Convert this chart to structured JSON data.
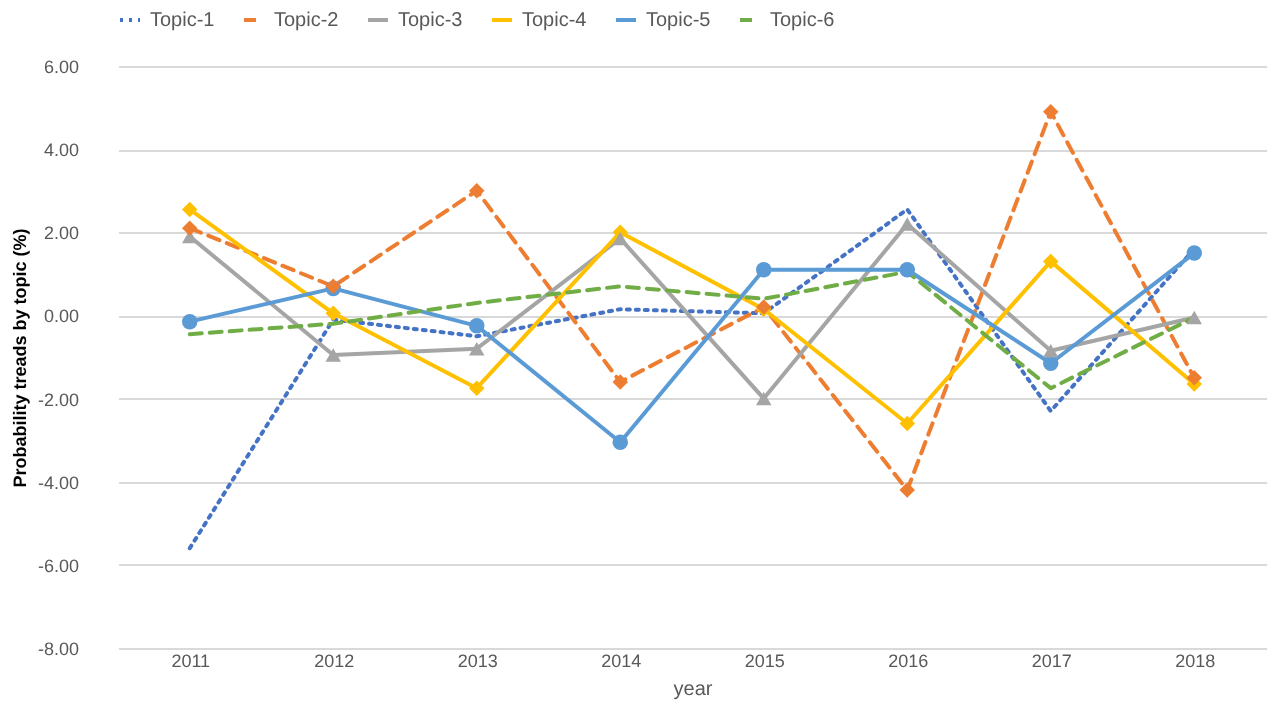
{
  "chart_data": {
    "type": "line",
    "xlabel": "year",
    "ylabel": "Probability treads by topic (%)",
    "categories": [
      "2011",
      "2012",
      "2013",
      "2014",
      "2015",
      "2016",
      "2017",
      "2018"
    ],
    "ylim": [
      -8,
      6
    ],
    "yticks": [
      {
        "value": -8,
        "label": "-8.00"
      },
      {
        "value": -6,
        "label": "-6.00"
      },
      {
        "value": -4,
        "label": "-4.00"
      },
      {
        "value": -2,
        "label": "-2.00"
      },
      {
        "value": 0,
        "label": "0.00"
      },
      {
        "value": 2,
        "label": "2.00"
      },
      {
        "value": 4,
        "label": "4.00"
      },
      {
        "value": 6,
        "label": "6.00"
      }
    ],
    "grid": "y",
    "legend": "top",
    "series": [
      {
        "name": "Topic-1",
        "color": "#4472c4",
        "line_style": "dotted",
        "marker": "none",
        "values": [
          -5.6,
          -0.1,
          -0.5,
          0.15,
          0.05,
          2.55,
          -2.3,
          1.6
        ]
      },
      {
        "name": "Topic-2",
        "color": "#ed7d31",
        "line_style": "dashed",
        "marker": "diamond",
        "values": [
          2.1,
          0.7,
          3.0,
          -1.6,
          0.2,
          -4.2,
          4.9,
          -1.5
        ]
      },
      {
        "name": "Topic-3",
        "color": "#a5a5a5",
        "line_style": "solid",
        "marker": "triangle",
        "values": [
          1.9,
          -0.95,
          -0.8,
          1.85,
          -2.0,
          2.2,
          -0.85,
          -0.05
        ]
      },
      {
        "name": "Topic-4",
        "color": "#ffc000",
        "line_style": "solid",
        "marker": "diamond",
        "values": [
          2.55,
          0.05,
          -1.75,
          2.0,
          0.15,
          -2.6,
          1.3,
          -1.65
        ]
      },
      {
        "name": "Topic-5",
        "color": "#5b9bd5",
        "line_style": "solid",
        "marker": "circle",
        "values": [
          -0.15,
          0.65,
          -0.25,
          -3.05,
          1.1,
          1.1,
          -1.15,
          1.5
        ]
      },
      {
        "name": "Topic-6",
        "color": "#70ad47",
        "line_style": "dashed",
        "marker": "none",
        "values": [
          -0.45,
          -0.2,
          0.3,
          0.7,
          0.4,
          1.05,
          -1.75,
          -0.05
        ]
      }
    ]
  }
}
